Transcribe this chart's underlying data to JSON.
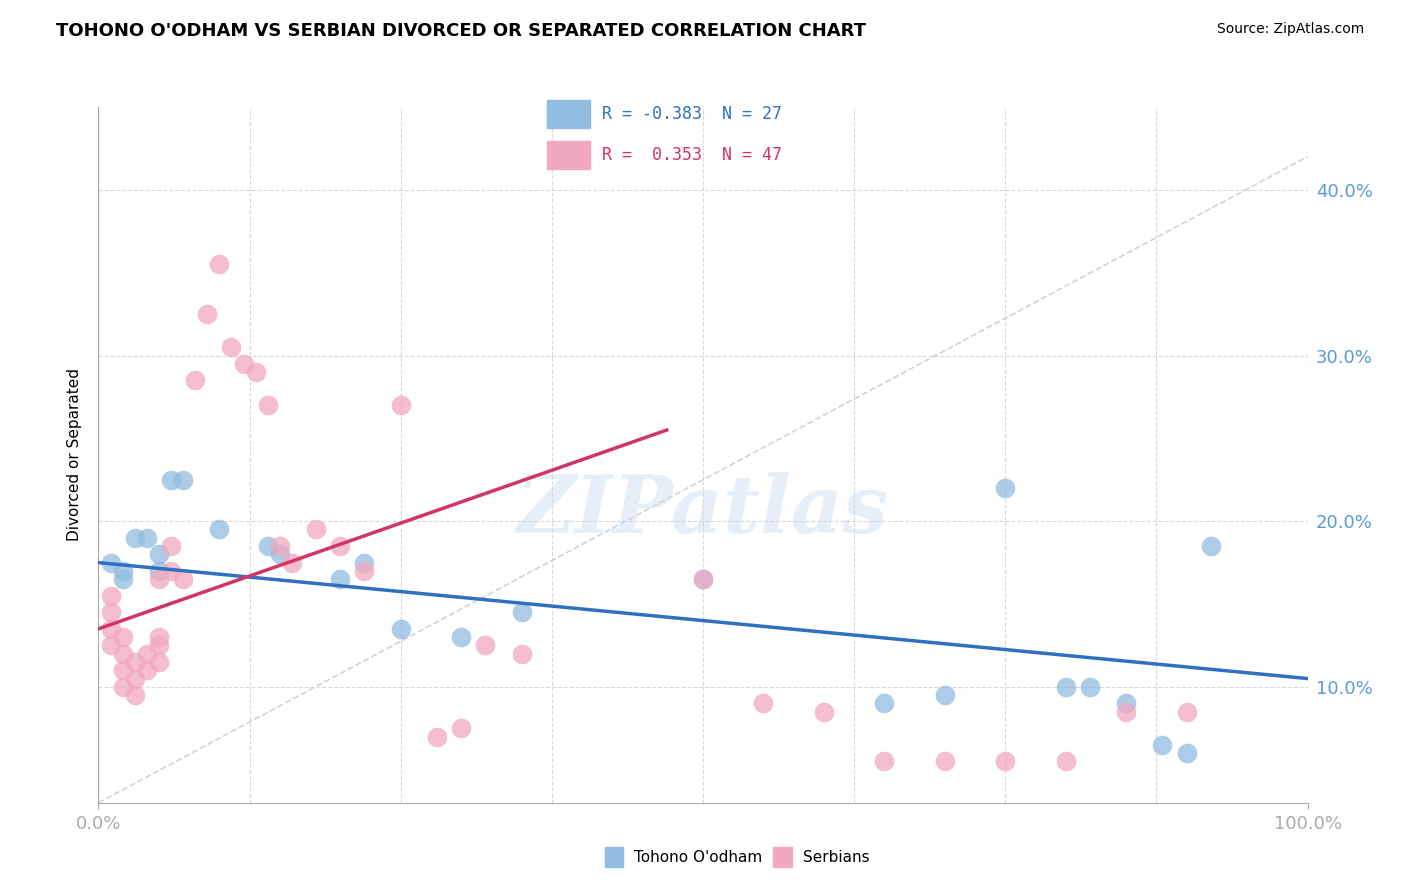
{
  "title": "TOHONO O'ODHAM VS SERBIAN DIVORCED OR SEPARATED CORRELATION CHART",
  "source": "Source: ZipAtlas.com",
  "ylabel": "Divorced or Separated",
  "xlim": [
    0,
    100
  ],
  "ylim": [
    3,
    45
  ],
  "ytick_values": [
    10,
    20,
    30,
    40
  ],
  "blue_scatter": [
    [
      1,
      17.5
    ],
    [
      2,
      17.0
    ],
    [
      3,
      19.0
    ],
    [
      2,
      16.5
    ],
    [
      4,
      19.0
    ],
    [
      5,
      18.0
    ],
    [
      5,
      17.0
    ],
    [
      6,
      22.5
    ],
    [
      7,
      22.5
    ],
    [
      10,
      19.5
    ],
    [
      14,
      18.5
    ],
    [
      15,
      18.0
    ],
    [
      20,
      16.5
    ],
    [
      22,
      17.5
    ],
    [
      25,
      13.5
    ],
    [
      30,
      13.0
    ],
    [
      35,
      14.5
    ],
    [
      50,
      16.5
    ],
    [
      65,
      9.0
    ],
    [
      70,
      9.5
    ],
    [
      75,
      22.0
    ],
    [
      80,
      10.0
    ],
    [
      82,
      10.0
    ],
    [
      85,
      9.0
    ],
    [
      88,
      6.5
    ],
    [
      90,
      6.0
    ],
    [
      92,
      18.5
    ]
  ],
  "pink_scatter": [
    [
      1,
      15.5
    ],
    [
      1,
      14.5
    ],
    [
      1,
      13.5
    ],
    [
      1,
      12.5
    ],
    [
      2,
      13.0
    ],
    [
      2,
      12.0
    ],
    [
      2,
      11.0
    ],
    [
      2,
      10.0
    ],
    [
      3,
      11.5
    ],
    [
      3,
      10.5
    ],
    [
      3,
      9.5
    ],
    [
      4,
      12.0
    ],
    [
      4,
      11.0
    ],
    [
      5,
      13.0
    ],
    [
      5,
      12.5
    ],
    [
      5,
      11.5
    ],
    [
      5,
      16.5
    ],
    [
      6,
      18.5
    ],
    [
      6,
      17.0
    ],
    [
      7,
      16.5
    ],
    [
      8,
      28.5
    ],
    [
      9,
      32.5
    ],
    [
      10,
      35.5
    ],
    [
      11,
      30.5
    ],
    [
      12,
      29.5
    ],
    [
      13,
      29.0
    ],
    [
      14,
      27.0
    ],
    [
      15,
      18.5
    ],
    [
      16,
      17.5
    ],
    [
      18,
      19.5
    ],
    [
      20,
      18.5
    ],
    [
      22,
      17.0
    ],
    [
      25,
      27.0
    ],
    [
      28,
      7.0
    ],
    [
      30,
      7.5
    ],
    [
      32,
      12.5
    ],
    [
      35,
      12.0
    ],
    [
      50,
      16.5
    ],
    [
      55,
      9.0
    ],
    [
      60,
      8.5
    ],
    [
      65,
      5.5
    ],
    [
      70,
      5.5
    ],
    [
      75,
      5.5
    ],
    [
      80,
      5.5
    ],
    [
      85,
      8.5
    ],
    [
      90,
      8.5
    ]
  ],
  "blue_line": {
    "x": [
      0,
      100
    ],
    "y": [
      17.5,
      10.5
    ]
  },
  "pink_line": {
    "x": [
      0,
      47
    ],
    "y": [
      13.5,
      25.5
    ]
  },
  "dashed_line": {
    "x": [
      0,
      100
    ],
    "y": [
      3,
      42
    ]
  },
  "blue_color": "#92bce0",
  "pink_color": "#f2a8bf",
  "blue_line_color": "#3070c0",
  "pink_line_color": "#d03565",
  "dashed_line_color": "#c8c8c8",
  "watermark_text": "ZIPatlas",
  "background_color": "#ffffff",
  "grid_color": "#d8d8d8",
  "tick_label_color": "#5b9bd5"
}
